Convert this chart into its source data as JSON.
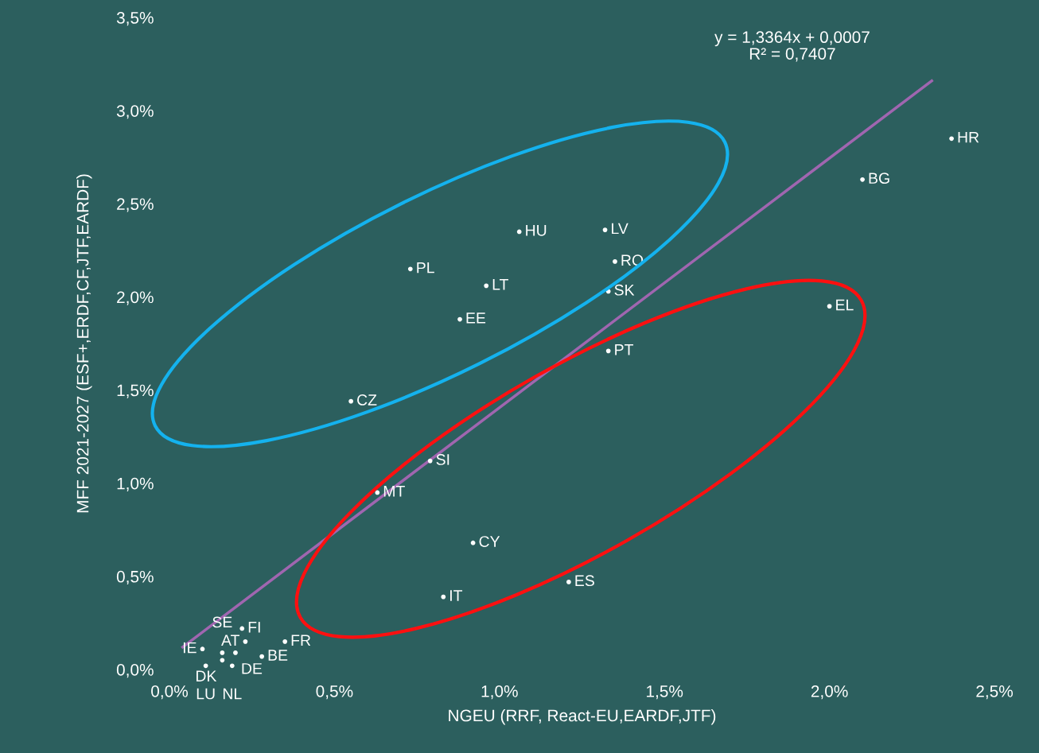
{
  "chart_data": {
    "type": "scatter",
    "xlabel": "NGEU (RRF, React-EU,EARDF,JTF)",
    "ylabel": "MFF 2021-2027 (ESF+,ERDF,CF,JTF,EARDF)",
    "xlim": [
      0,
      2.5
    ],
    "ylim": [
      0,
      3.5
    ],
    "xticks": [
      {
        "value": 0,
        "label": "0,0%"
      },
      {
        "value": 0.5,
        "label": "0,5%"
      },
      {
        "value": 1.0,
        "label": "1,0%"
      },
      {
        "value": 1.5,
        "label": "1,5%"
      },
      {
        "value": 2.0,
        "label": "2,0%"
      },
      {
        "value": 2.5,
        "label": "2,5%"
      }
    ],
    "yticks": [
      {
        "value": 0,
        "label": "0,0%"
      },
      {
        "value": 0.5,
        "label": "0,5%"
      },
      {
        "value": 1.0,
        "label": "1,0%"
      },
      {
        "value": 1.5,
        "label": "1,5%"
      },
      {
        "value": 2.0,
        "label": "2,0%"
      },
      {
        "value": 2.5,
        "label": "2,5%"
      },
      {
        "value": 3.0,
        "label": "3,0%"
      },
      {
        "value": 3.5,
        "label": "3,5%"
      }
    ],
    "grid": false,
    "series": [
      {
        "color": "#ffffff",
        "marker": "circle",
        "x": [
          2.37,
          2.1,
          2.0,
          1.06,
          1.32,
          1.35,
          1.33,
          1.33,
          0.73,
          0.96,
          0.88,
          0.55,
          0.79,
          0.63,
          0.92,
          1.21,
          0.83,
          0.22,
          0.23,
          0.35,
          0.1,
          0.16,
          0.2,
          0.28,
          0.16,
          0.11,
          0.19
        ],
        "values": [
          2.85,
          2.63,
          1.95,
          2.35,
          2.36,
          2.19,
          2.03,
          1.71,
          2.15,
          2.06,
          1.88,
          1.44,
          1.12,
          0.95,
          0.68,
          0.47,
          0.39,
          0.22,
          0.15,
          0.15,
          0.11,
          0.09,
          0.09,
          0.07,
          0.05,
          0.02,
          0.02
        ],
        "value_labels": [
          "HR",
          "BG",
          "EL",
          "HU",
          "LV",
          "RO",
          "SK",
          "PT",
          "PL",
          "LT",
          "EE",
          "CZ",
          "SI",
          "MT",
          "CY",
          "ES",
          "IT",
          "FI",
          "AT",
          "FR",
          "IE",
          "SE",
          "DE",
          "BE",
          "DK",
          "LU",
          "NL"
        ]
      },
      {
        "type": "line",
        "color": "#a066b0",
        "marker": "none",
        "x": [
          0.04,
          2.31
        ],
        "values": [
          0.12,
          3.16
        ]
      }
    ],
    "annotations": [
      "y = 1,3364x + 0,0007\nR² = 0,7407"
    ]
  }
}
